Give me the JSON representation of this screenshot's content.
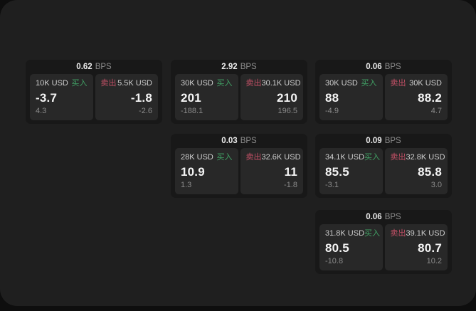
{
  "labels": {
    "bps": "BPS",
    "buy": "买入",
    "sell": "卖出"
  },
  "colors": {
    "buy": "#41a165",
    "sell": "#c04f65",
    "window_bg": "#1f1f1f",
    "card_bg": "#181818",
    "tile_bg": "#282828"
  },
  "cards": [
    {
      "row": 1,
      "col": 1,
      "bps": "0.62",
      "buy": {
        "size": "10K USD",
        "price": "-3.7",
        "delta": "4.3"
      },
      "sell": {
        "size": "5.5K USD",
        "price": "-1.8",
        "delta": "-2.6"
      }
    },
    {
      "row": 1,
      "col": 2,
      "bps": "2.92",
      "buy": {
        "size": "30K USD",
        "price": "201",
        "delta": "-188.1"
      },
      "sell": {
        "size": "30.1K USD",
        "price": "210",
        "delta": "196.5"
      }
    },
    {
      "row": 1,
      "col": 3,
      "bps": "0.06",
      "buy": {
        "size": "30K USD",
        "price": "88",
        "delta": "-4.9"
      },
      "sell": {
        "size": "30K USD",
        "price": "88.2",
        "delta": "4.7"
      }
    },
    {
      "row": 2,
      "col": 2,
      "bps": "0.03",
      "buy": {
        "size": "28K USD",
        "price": "10.9",
        "delta": "1.3"
      },
      "sell": {
        "size": "32.6K USD",
        "price": "11",
        "delta": "-1.8"
      }
    },
    {
      "row": 2,
      "col": 3,
      "bps": "0.09",
      "buy": {
        "size": "34.1K USD",
        "price": "85.5",
        "delta": "-3.1"
      },
      "sell": {
        "size": "32.8K USD",
        "price": "85.8",
        "delta": "3.0"
      }
    },
    {
      "row": 3,
      "col": 3,
      "bps": "0.06",
      "buy": {
        "size": "31.8K USD",
        "price": "80.5",
        "delta": "-10.8"
      },
      "sell": {
        "size": "39.1K USD",
        "price": "80.7",
        "delta": "10.2"
      }
    }
  ]
}
